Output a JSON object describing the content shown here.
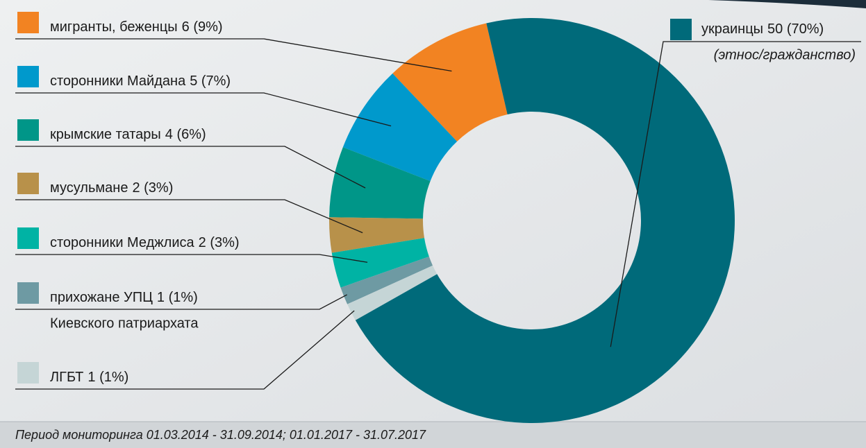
{
  "chart_data": {
    "type": "pie",
    "donut": true,
    "categories": [
      "мигранты, беженцы",
      "сторонники Майдана",
      "крымские татары",
      "мусульмане",
      "сторонники Меджлиса",
      "прихожане УПЦ",
      "ЛГБТ",
      "украинцы"
    ],
    "values": [
      6,
      5,
      4,
      2,
      2,
      1,
      1,
      50
    ],
    "value_labels": [
      "6 (9%)",
      "5 (7%)",
      "4 (6%)",
      "2 (3%)",
      "2 (3%)",
      "1 (1%)",
      "1 (1%)",
      "50 (70%)"
    ],
    "colors": [
      "#f28322",
      "#0099cc",
      "#009688",
      "#b8914a",
      "#00b3a4",
      "#6e9aa3",
      "#c5d5d6",
      "#006a7a"
    ],
    "annotations": [
      "Киевского патриархата",
      "(этнос/гражданство)"
    ],
    "note": "Период мониторинга 01.03.2014 - 31.09.2014; 01.01.2017 - 31.07.2017"
  }
}
